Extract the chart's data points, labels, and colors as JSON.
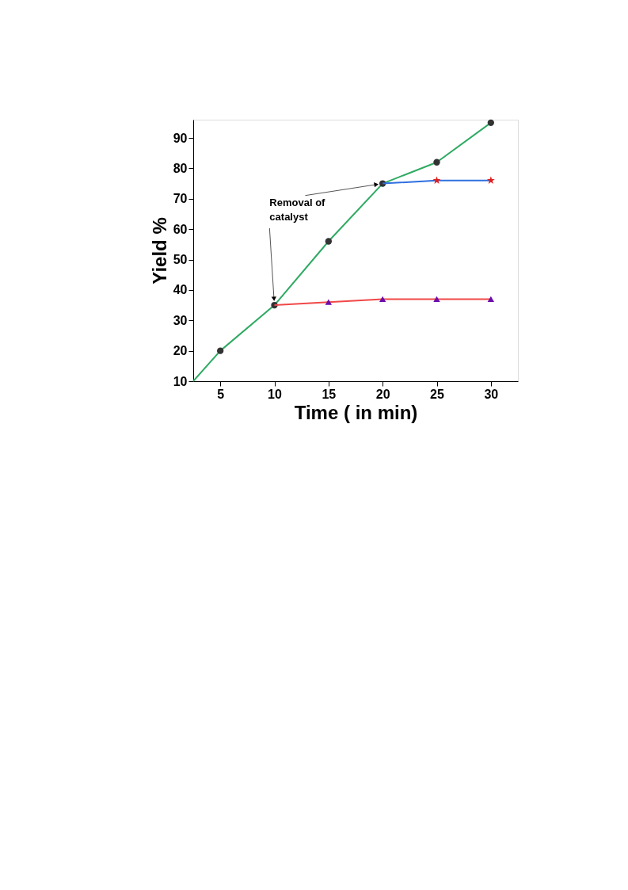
{
  "chart_data": {
    "type": "line",
    "xlabel": "Time ( in min)",
    "ylabel": "Yield %",
    "xlim": [
      2.5,
      32.5
    ],
    "xticks": [
      5,
      10,
      15,
      20,
      25,
      30
    ],
    "ylim": [
      10,
      96
    ],
    "yticks": [
      10,
      20,
      30,
      40,
      50,
      60,
      70,
      80,
      90
    ],
    "line_style": "solid",
    "annotations": [
      {
        "text": "Removal of\ncatalyst",
        "x": 10,
        "y": 35
      }
    ],
    "series": [
      {
        "color": "#2eaa62",
        "marker": "circle",
        "x": [
          2.5,
          5,
          10,
          15,
          20,
          25,
          30
        ],
        "values": [
          10,
          20,
          35,
          56,
          75,
          82,
          95
        ],
        "colors": [
          null,
          "#333333",
          "#333333",
          "#333333",
          "#333333",
          "#333333",
          "#333333"
        ]
      },
      {
        "color": "#f04848",
        "marker": "triangle",
        "x": [
          10,
          15,
          20,
          25,
          30
        ],
        "values": [
          35,
          36,
          37,
          37,
          37
        ],
        "colors": [
          null,
          "#6a0dad",
          "#6a0dad",
          "#6a0dad",
          "#6a0dad"
        ]
      },
      {
        "color": "#2f6fe0",
        "marker": "star",
        "x": [
          20,
          25,
          30
        ],
        "values": [
          75,
          76,
          76
        ],
        "colors": [
          null,
          "#e02020",
          "#e02020"
        ]
      }
    ]
  }
}
